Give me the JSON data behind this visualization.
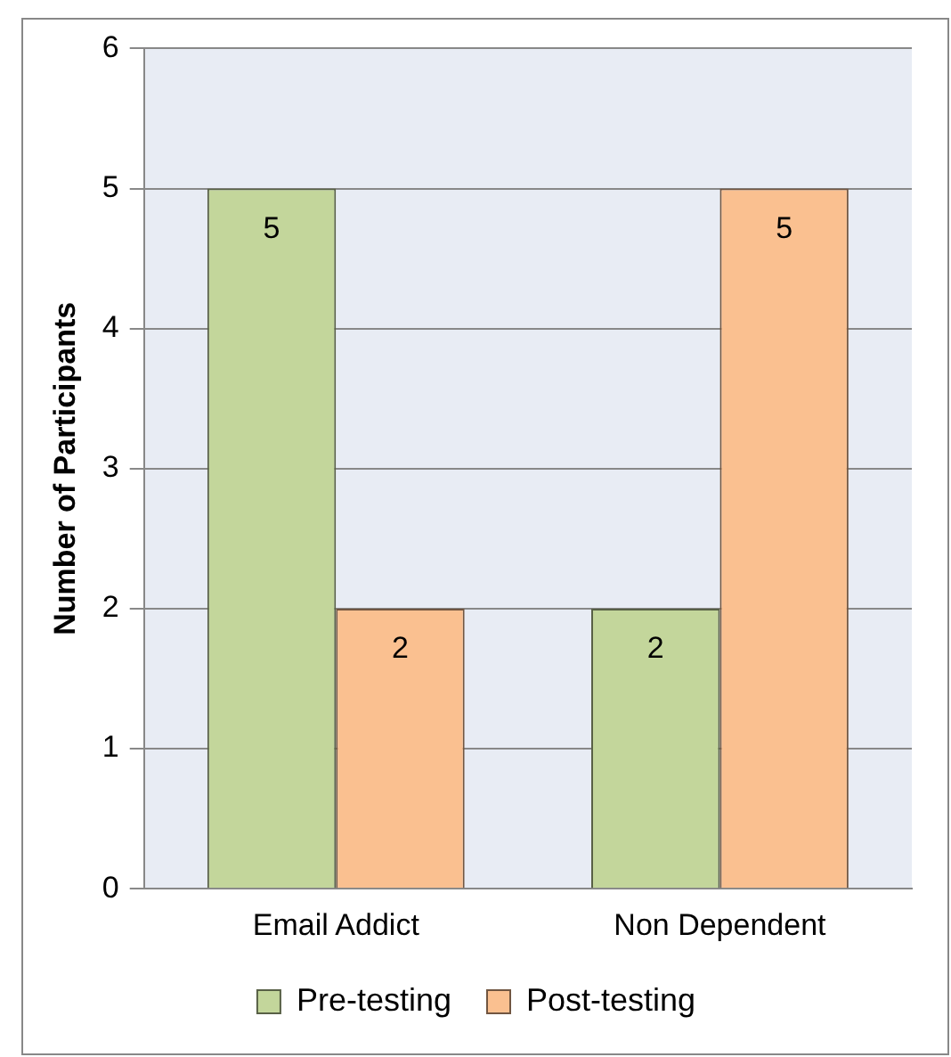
{
  "chart_data": {
    "type": "bar",
    "ylabel": "Number of Participants",
    "categories": [
      "Email Addict",
      "Non Dependent"
    ],
    "series": [
      {
        "name": "Pre-testing",
        "color": "#c3d69b",
        "values": [
          5,
          2
        ]
      },
      {
        "name": "Post-testing",
        "color": "#fac090",
        "values": [
          2,
          5
        ]
      }
    ],
    "ylim": [
      0,
      6
    ],
    "yticks": [
      0,
      1,
      2,
      3,
      4,
      5,
      6
    ],
    "grid": "y",
    "legend": "bottom",
    "data_labels": true
  }
}
